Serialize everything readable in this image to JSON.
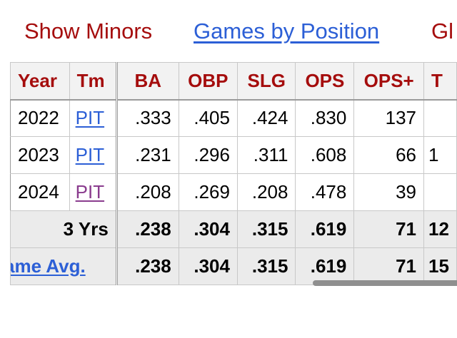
{
  "nav": {
    "show_minors": "Show Minors",
    "games_by_position": "Games by Position",
    "glossary_partial": "Gl"
  },
  "table": {
    "headers": [
      "Year",
      "Tm",
      "BA",
      "OBP",
      "SLG",
      "OPS",
      "OPS+",
      "T"
    ],
    "rows": [
      {
        "year": "2022",
        "tm": "PIT",
        "ba": ".333",
        "obp": ".405",
        "slg": ".424",
        "ops": ".830",
        "ops_plus": "137",
        "t": ""
      },
      {
        "year": "2023",
        "tm": "PIT",
        "ba": ".231",
        "obp": ".296",
        "slg": ".311",
        "ops": ".608",
        "ops_plus": "66",
        "t": "1"
      },
      {
        "year": "2024",
        "tm": "PIT",
        "ba": ".208",
        "obp": ".269",
        "slg": ".208",
        "ops": ".478",
        "ops_plus": "39",
        "t": ""
      }
    ],
    "totals": {
      "label": "3 Yrs",
      "ba": ".238",
      "obp": ".304",
      "slg": ".315",
      "ops": ".619",
      "ops_plus": "71",
      "t": "12"
    },
    "game_avg": {
      "label": "ame Avg.",
      "ba": ".238",
      "obp": ".304",
      "slg": ".315",
      "ops": ".619",
      "ops_plus": "71",
      "t": "15"
    }
  },
  "colors": {
    "header_text": "#a50d0d",
    "link": "#2c5fd6",
    "visited_link": "#8a3c8e",
    "header_bg": "#f2f2f2",
    "summary_bg": "#ebebeb"
  }
}
